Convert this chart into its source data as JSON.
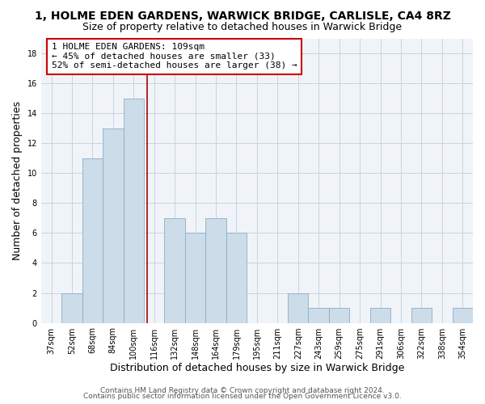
{
  "title": "1, HOLME EDEN GARDENS, WARWICK BRIDGE, CARLISLE, CA4 8RZ",
  "subtitle": "Size of property relative to detached houses in Warwick Bridge",
  "xlabel": "Distribution of detached houses by size in Warwick Bridge",
  "ylabel": "Number of detached properties",
  "categories": [
    "37sqm",
    "52sqm",
    "68sqm",
    "84sqm",
    "100sqm",
    "116sqm",
    "132sqm",
    "148sqm",
    "164sqm",
    "179sqm",
    "195sqm",
    "211sqm",
    "227sqm",
    "243sqm",
    "259sqm",
    "275sqm",
    "291sqm",
    "306sqm",
    "322sqm",
    "338sqm",
    "354sqm"
  ],
  "values": [
    0,
    2,
    11,
    13,
    15,
    0,
    7,
    6,
    7,
    6,
    0,
    0,
    2,
    1,
    1,
    0,
    1,
    0,
    1,
    0,
    1
  ],
  "bar_color": "#ccdce8",
  "bar_edge_color": "#8aaec8",
  "vline_color": "#aa0000",
  "vline_x": 4.67,
  "ylim": [
    0,
    19
  ],
  "yticks": [
    0,
    2,
    4,
    6,
    8,
    10,
    12,
    14,
    16,
    18
  ],
  "annotation_text": "1 HOLME EDEN GARDENS: 109sqm\n← 45% of detached houses are smaller (33)\n52% of semi-detached houses are larger (38) →",
  "annotation_box_color": "#ffffff",
  "annotation_box_edge": "#cc0000",
  "footer1": "Contains HM Land Registry data © Crown copyright and database right 2024.",
  "footer2": "Contains public sector information licensed under the Open Government Licence v3.0.",
  "title_fontsize": 10,
  "subtitle_fontsize": 9,
  "axis_label_fontsize": 9,
  "tick_fontsize": 7,
  "annotation_fontsize": 8,
  "footer_fontsize": 6.5
}
